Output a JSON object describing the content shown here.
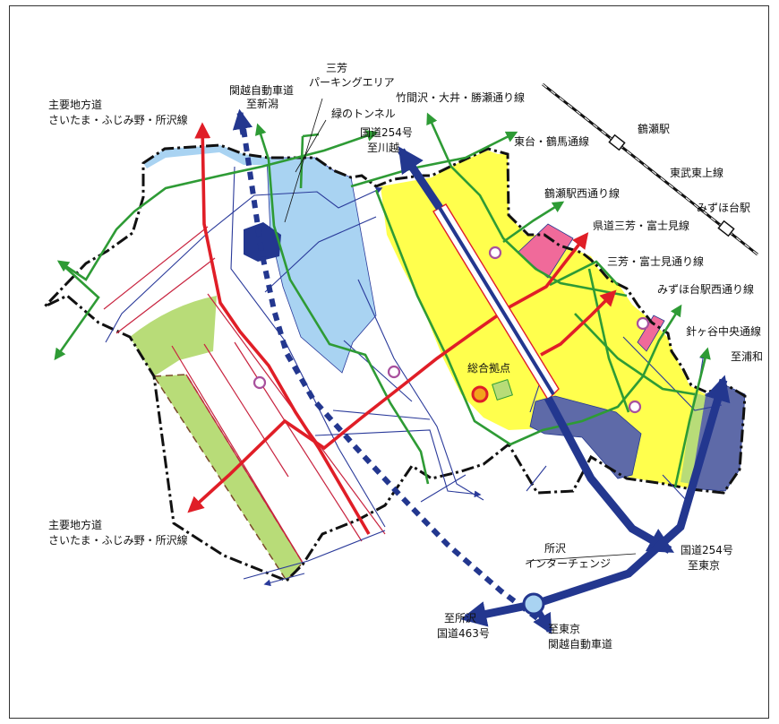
{
  "labels": {
    "sanbou_parking_1": "三芳",
    "sanbou_parking_2": "パーキングエリア",
    "kanetsu_niigata_1": "関越自動車道",
    "kanetsu_niigata_2": "至新潟",
    "chiho_top_1": "主要地方道",
    "chiho_top_2": "さいたま・ふじみ野・所沢線",
    "green_tunnel": "緑のトンネル",
    "takamazawa": "竹間沢・大井・勝瀬通り線",
    "tsuruse_station": "鶴瀬駅",
    "route254_kawagoe_1": "国道254号",
    "route254_kawagoe_2": "至川越",
    "higashidai": "東台・鶴馬通線",
    "tobu_tojo": "東武東上線",
    "mizuhodai_station": "みずほ台駅",
    "tsuruse_nishi": "鶴瀬駅西通り線",
    "kendo_sanbou": "県道三芳・富士見線",
    "sanbou_fujimi": "三芳・富士見通り線",
    "mizuhodai_nishi": "みずほ台駅西通り線",
    "harigaya": "針ヶ谷中央通線",
    "to_urawa": "至浦和",
    "sogo_kyoten": "総合拠点",
    "chiho_bottom_1": "主要地方道",
    "chiho_bottom_2": "さいたま・ふじみ野・所沢線",
    "tokorozawa_ic_1": "所沢",
    "tokorozawa_ic_2": "インターチェンジ",
    "route254_tokyo_1": "国道254号",
    "route254_tokyo_2": "至東京",
    "tokorozawa_463_1": "至所沢",
    "tokorozawa_463_2": "国道463号",
    "tokyo_kanetsu_1": "至東京",
    "tokyo_kanetsu_2": "関越自動車道"
  },
  "colors": {
    "urban_yellow": "#ffff4d",
    "park_blue": "#a9d3f2",
    "industrial_navy": "#5e6aa8",
    "green_area": "#b8dc78",
    "pink_area": "#f06a9a",
    "main_road_red": "#e01e27",
    "local_road_green": "#2e9b35",
    "national_road_navy": "#23378f",
    "district_road_thin_red": "#c8233f",
    "minor_road_thin_navy": "#2a3a9a",
    "marker_purple": "#a8509d"
  }
}
